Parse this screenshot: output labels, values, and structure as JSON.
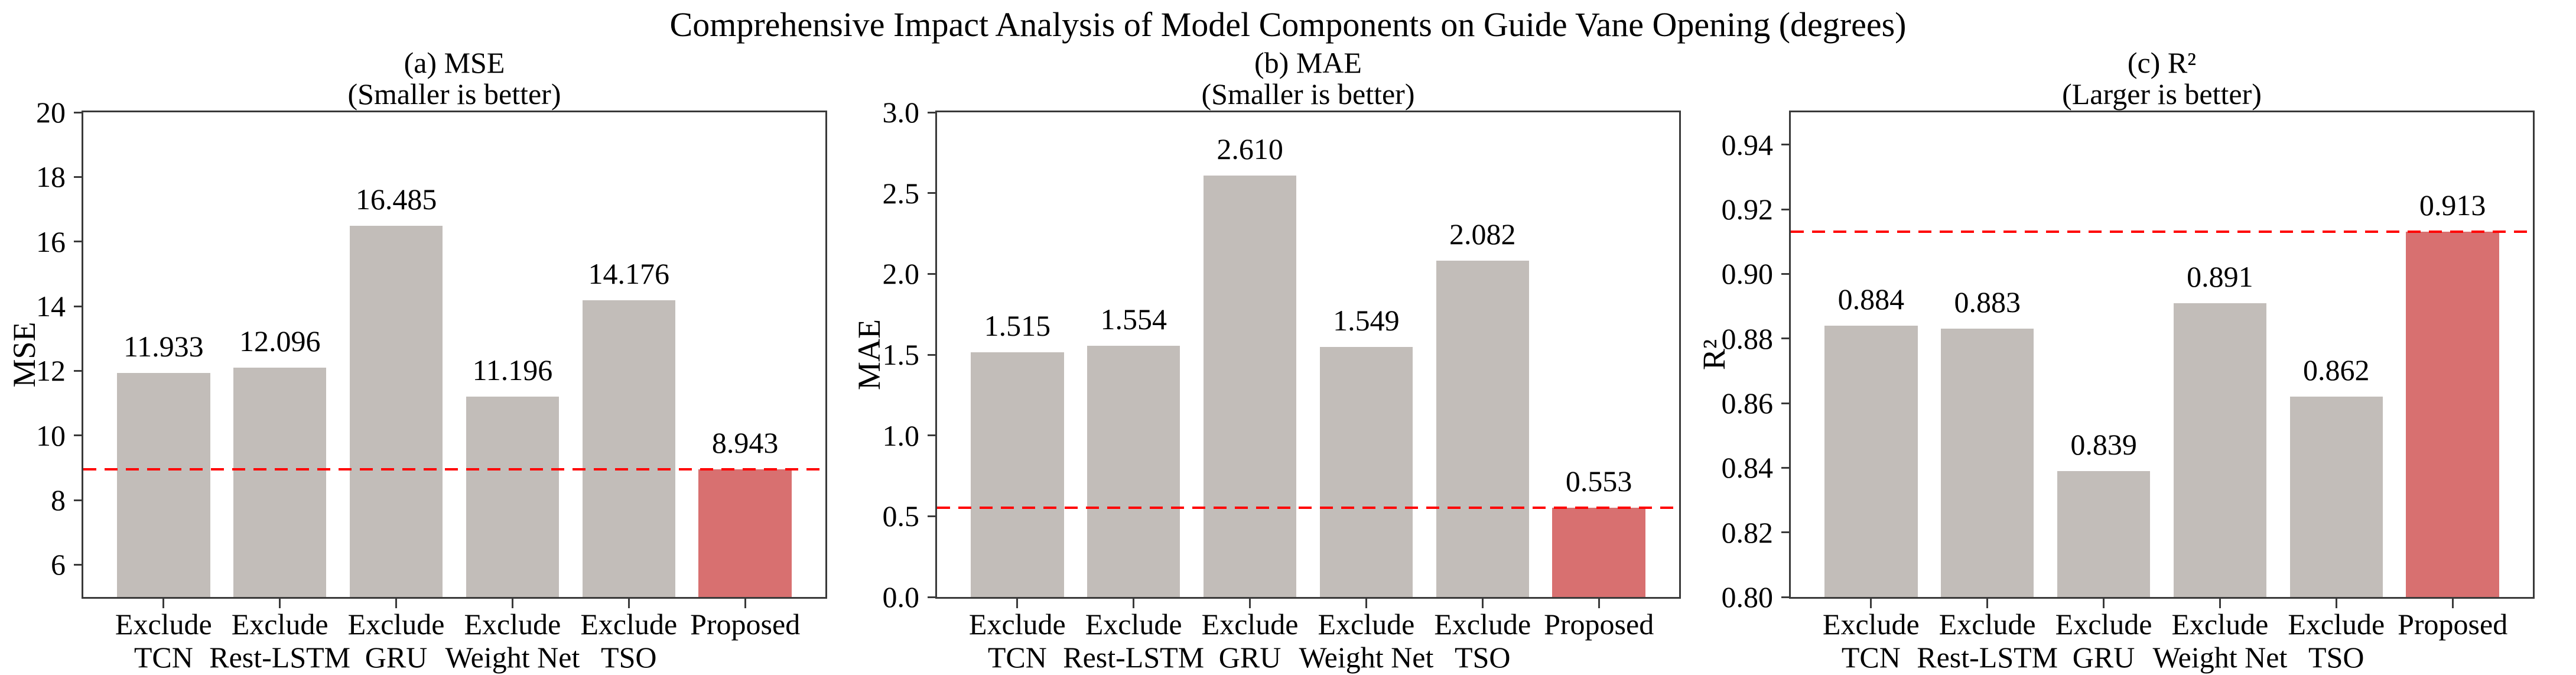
{
  "figure": {
    "title": "Comprehensive Impact Analysis of Model Components on Guide Vane Opening (degrees)"
  },
  "colors": {
    "bar_default": "#c2bdb9",
    "bar_highlight": "#d87070",
    "reference_line": "#ff0000",
    "spine": "#3a3a3a",
    "text": "#000000"
  },
  "chart_data": [
    {
      "type": "bar",
      "title_line1": "(a) MSE",
      "title_line2": "(Smaller is better)",
      "ylabel": "MSE",
      "categories": [
        [
          "Exclude",
          "TCN"
        ],
        [
          "Exclude",
          "Rest-LSTM"
        ],
        [
          "Exclude",
          "GRU"
        ],
        [
          "Exclude",
          "Weight Net"
        ],
        [
          "Exclude",
          "TSO"
        ],
        [
          "Proposed"
        ]
      ],
      "values": [
        11.933,
        12.096,
        16.485,
        11.196,
        14.176,
        8.943
      ],
      "value_labels": [
        "11.933",
        "12.096",
        "16.485",
        "11.196",
        "14.176",
        "8.943"
      ],
      "highlight_index": 5,
      "reference_value": 8.943,
      "ylim": [
        5,
        20
      ],
      "yticks": [
        6,
        8,
        10,
        12,
        14,
        16,
        18,
        20
      ],
      "ytick_labels": [
        "6",
        "8",
        "10",
        "12",
        "14",
        "16",
        "18",
        "20"
      ],
      "grid": false,
      "legend": "none"
    },
    {
      "type": "bar",
      "title_line1": "(b) MAE",
      "title_line2": "(Smaller is better)",
      "ylabel": "MAE",
      "categories": [
        [
          "Exclude",
          "TCN"
        ],
        [
          "Exclude",
          "Rest-LSTM"
        ],
        [
          "Exclude",
          "GRU"
        ],
        [
          "Exclude",
          "Weight Net"
        ],
        [
          "Exclude",
          "TSO"
        ],
        [
          "Proposed"
        ]
      ],
      "values": [
        1.515,
        1.554,
        2.61,
        1.549,
        2.082,
        0.553
      ],
      "value_labels": [
        "1.515",
        "1.554",
        "2.610",
        "1.549",
        "2.082",
        "0.553"
      ],
      "highlight_index": 5,
      "reference_value": 0.553,
      "ylim": [
        0,
        3
      ],
      "yticks": [
        0.0,
        0.5,
        1.0,
        1.5,
        2.0,
        2.5,
        3.0
      ],
      "ytick_labels": [
        "0.0",
        "0.5",
        "1.0",
        "1.5",
        "2.0",
        "2.5",
        "3.0"
      ],
      "grid": false,
      "legend": "none"
    },
    {
      "type": "bar",
      "title_line1": "(c) R²",
      "title_line2": "(Larger is better)",
      "ylabel": "R²",
      "categories": [
        [
          "Exclude",
          "TCN"
        ],
        [
          "Exclude",
          "Rest-LSTM"
        ],
        [
          "Exclude",
          "GRU"
        ],
        [
          "Exclude",
          "Weight Net"
        ],
        [
          "Exclude",
          "TSO"
        ],
        [
          "Proposed"
        ]
      ],
      "values": [
        0.884,
        0.883,
        0.839,
        0.891,
        0.862,
        0.913
      ],
      "value_labels": [
        "0.884",
        "0.883",
        "0.839",
        "0.891",
        "0.862",
        "0.913"
      ],
      "highlight_index": 5,
      "reference_value": 0.913,
      "ylim": [
        0.8,
        0.95
      ],
      "yticks": [
        0.8,
        0.82,
        0.84,
        0.86,
        0.88,
        0.9,
        0.92,
        0.94
      ],
      "ytick_labels": [
        "0.80",
        "0.82",
        "0.84",
        "0.86",
        "0.88",
        "0.90",
        "0.92",
        "0.94"
      ],
      "grid": false,
      "legend": "none"
    }
  ]
}
